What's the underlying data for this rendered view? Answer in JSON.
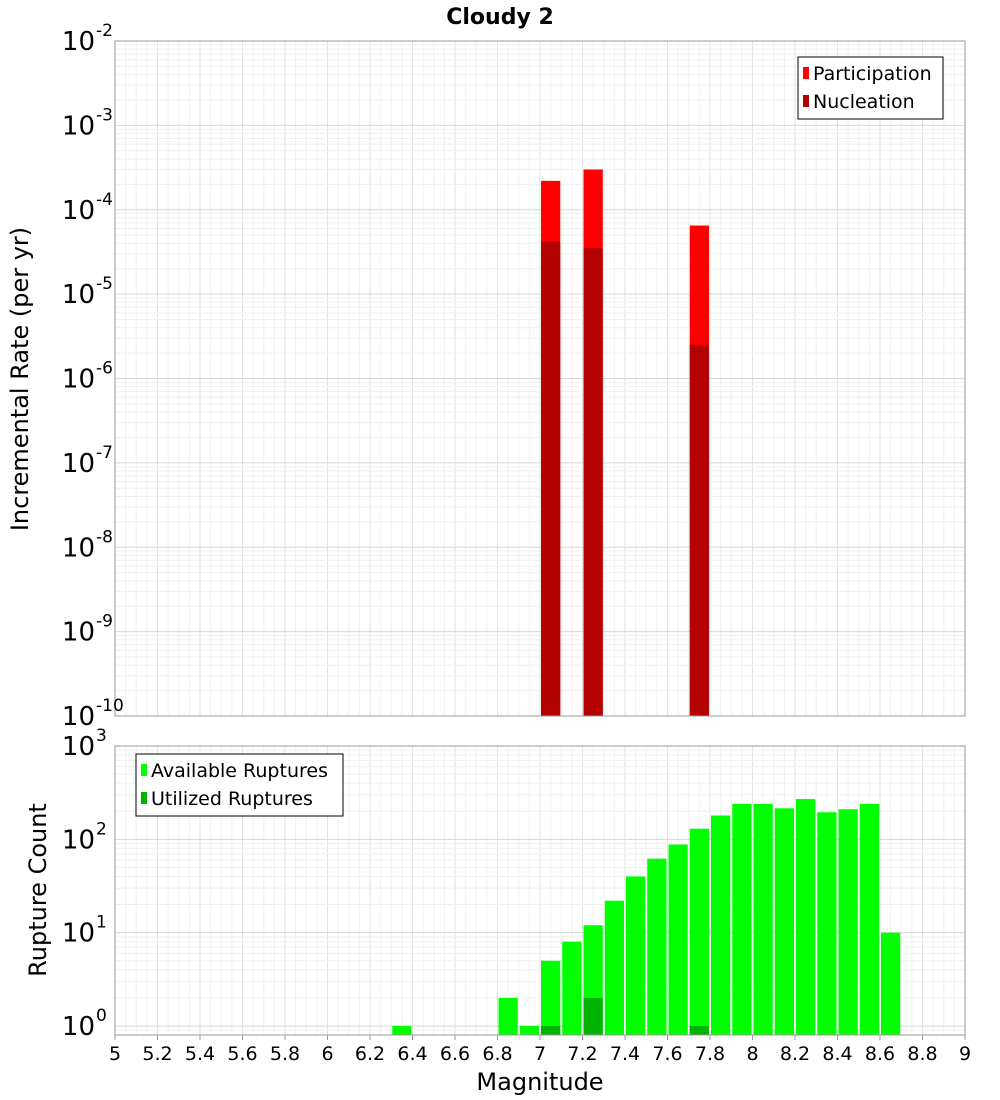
{
  "title": "Cloudy 2",
  "chart_data": [
    {
      "type": "bar",
      "panel": "top",
      "ylabel": "Incremental Rate (per yr)",
      "yscale": "log",
      "ylim": [
        1e-10,
        0.01
      ],
      "yticks": [
        {
          "base": "10",
          "exp": "-10"
        },
        {
          "base": "10",
          "exp": "-9"
        },
        {
          "base": "10",
          "exp": "-8"
        },
        {
          "base": "10",
          "exp": "-7"
        },
        {
          "base": "10",
          "exp": "-6"
        },
        {
          "base": "10",
          "exp": "-5"
        },
        {
          "base": "10",
          "exp": "-4"
        },
        {
          "base": "10",
          "exp": "-3"
        },
        {
          "base": "10",
          "exp": "-2"
        }
      ],
      "bin_width": 0.1,
      "legend_position": "top-right",
      "grid": true,
      "series": [
        {
          "name": "Participation",
          "color": "#ff0000",
          "points": [
            {
              "x": 7.05,
              "y": 0.00022
            },
            {
              "x": 7.25,
              "y": 0.0003
            },
            {
              "x": 7.75,
              "y": 6.5e-05
            }
          ]
        },
        {
          "name": "Nucleation",
          "color": "#b30000",
          "points": [
            {
              "x": 7.05,
              "y": 4.2e-05
            },
            {
              "x": 7.25,
              "y": 3.5e-05
            },
            {
              "x": 7.75,
              "y": 2.5e-06
            }
          ]
        }
      ]
    },
    {
      "type": "bar",
      "panel": "bottom",
      "ylabel": "Rupture Count",
      "xlabel": "Magnitude",
      "yscale": "log",
      "ylim": [
        0.8,
        1000
      ],
      "yticks": [
        {
          "base": "10",
          "exp": "0",
          "value": 1
        },
        {
          "base": "10",
          "exp": "1",
          "value": 10
        },
        {
          "base": "10",
          "exp": "2",
          "value": 100
        },
        {
          "base": "10",
          "exp": "3",
          "value": 1000
        }
      ],
      "xlim": [
        5,
        9
      ],
      "xticks": [
        "5",
        "5.2",
        "5.4",
        "5.6",
        "5.8",
        "6",
        "6.2",
        "6.4",
        "6.6",
        "6.8",
        "7",
        "7.2",
        "7.4",
        "7.6",
        "7.8",
        "8",
        "8.2",
        "8.4",
        "8.6",
        "8.8",
        "9"
      ],
      "bin_width": 0.1,
      "legend_position": "top-left",
      "grid": true,
      "series": [
        {
          "name": "Available Ruptures",
          "color": "#00ff00",
          "points": [
            {
              "x": 6.35,
              "y": 1
            },
            {
              "x": 6.85,
              "y": 2
            },
            {
              "x": 6.95,
              "y": 1
            },
            {
              "x": 7.05,
              "y": 5
            },
            {
              "x": 7.15,
              "y": 8
            },
            {
              "x": 7.25,
              "y": 12
            },
            {
              "x": 7.35,
              "y": 22
            },
            {
              "x": 7.45,
              "y": 40
            },
            {
              "x": 7.55,
              "y": 62
            },
            {
              "x": 7.65,
              "y": 88
            },
            {
              "x": 7.75,
              "y": 130
            },
            {
              "x": 7.85,
              "y": 180
            },
            {
              "x": 7.95,
              "y": 240
            },
            {
              "x": 8.05,
              "y": 240
            },
            {
              "x": 8.15,
              "y": 215
            },
            {
              "x": 8.25,
              "y": 270
            },
            {
              "x": 8.35,
              "y": 195
            },
            {
              "x": 8.45,
              "y": 210
            },
            {
              "x": 8.55,
              "y": 240
            },
            {
              "x": 8.65,
              "y": 10
            }
          ]
        },
        {
          "name": "Utilized Ruptures",
          "color": "#00b300",
          "points": [
            {
              "x": 7.05,
              "y": 1
            },
            {
              "x": 7.25,
              "y": 2
            },
            {
              "x": 7.75,
              "y": 1
            }
          ]
        }
      ]
    }
  ]
}
